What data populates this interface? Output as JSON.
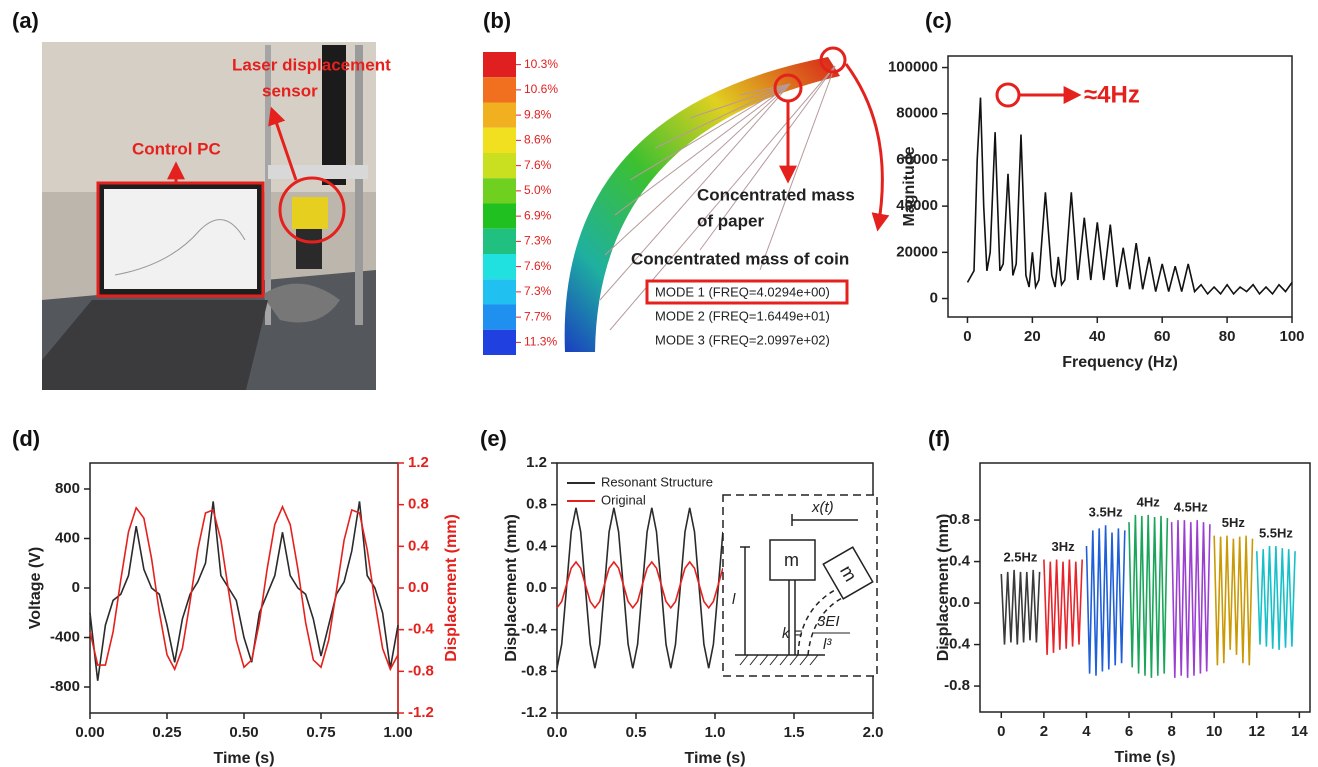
{
  "photo": {
    "label": "(a)",
    "annotations": [
      "Laser displacement",
      "sensor",
      "Control PC"
    ]
  },
  "simulation": {
    "label": "(b)",
    "colorbar": [
      "10.3%",
      "10.6%",
      "9.8%",
      "8.6%",
      "7.6%",
      "5.0%",
      "6.9%",
      "7.3%",
      "7.6%",
      "7.3%",
      "7.7%",
      "11.3%"
    ],
    "annotations": [
      "Concentrated mass",
      "of paper",
      "Concentrated mass of coin"
    ],
    "modes": [
      "MODE 1 (FREQ=4.0294e+00)",
      "MODE 2 (FREQ=1.6449e+01)",
      "MODE 3 (FREQ=2.0997e+02)"
    ]
  },
  "chart_data": [
    {
      "type": "line",
      "panel": "(c)",
      "xlabel": "Frequency (Hz)",
      "ylabel": "Magnitude",
      "annotation": "≈4Hz",
      "xlim": [
        -6,
        100
      ],
      "xticks": [
        0,
        20,
        40,
        60,
        80,
        100
      ],
      "ylim": [
        -8000,
        105000
      ],
      "yticks": [
        0,
        20000,
        40000,
        60000,
        80000,
        100000
      ],
      "color": "#111111",
      "x": [
        0,
        2,
        3,
        4,
        5,
        6,
        7,
        8.5,
        10,
        11,
        12.5,
        14,
        15,
        16.5,
        18,
        19,
        20,
        21,
        22,
        24,
        26,
        27,
        28,
        29,
        30,
        32,
        34,
        36,
        38,
        40,
        42,
        44,
        46,
        48,
        50,
        52,
        54,
        56,
        58,
        60,
        62,
        64,
        66,
        68,
        70,
        72,
        74,
        76,
        78,
        80,
        82,
        84,
        86,
        88,
        90,
        92,
        94,
        96,
        98,
        100
      ],
      "values": [
        7000,
        12000,
        60000,
        87000,
        40000,
        12000,
        20000,
        72000,
        12000,
        15000,
        54000,
        10000,
        15000,
        71000,
        10000,
        5000,
        20000,
        5000,
        8000,
        46000,
        10000,
        5000,
        18000,
        6000,
        8000,
        46000,
        8000,
        35000,
        8000,
        33000,
        8000,
        32000,
        5000,
        22000,
        4000,
        24000,
        4000,
        18000,
        3000,
        15000,
        3000,
        14000,
        3000,
        15000,
        3000,
        6000,
        2000,
        5000,
        2000,
        6000,
        2000,
        5000,
        3000,
        6000,
        2000,
        5000,
        2000,
        6000,
        3000,
        7000
      ]
    },
    {
      "type": "line",
      "panel": "(d)",
      "xlabel": "Time (s)",
      "ylabel": "Voltage (V)",
      "y2label": "Displacement (mm)",
      "xlim": [
        0,
        1
      ],
      "xticks": [
        {
          "value": 0,
          "label": "0.00"
        },
        0.25,
        {
          "value": 0.5,
          "label": "0.50"
        },
        0.75,
        {
          "value": 1,
          "label": "1.00"
        }
      ],
      "ylim": [
        -1010,
        1010
      ],
      "yticks": [
        -800,
        -400,
        0,
        400,
        800
      ],
      "y2lim": [
        -1.2,
        1.2
      ],
      "y2ticks": [
        -1.2,
        -0.8,
        -0.4,
        {
          "value": 0,
          "label": "0.0"
        },
        0.4,
        0.8,
        1.2
      ],
      "x": [
        0,
        0.025,
        0.05,
        0.075,
        0.1,
        0.125,
        0.15,
        0.175,
        0.2,
        0.225,
        0.25,
        0.275,
        0.3,
        0.325,
        0.35,
        0.375,
        0.4,
        0.425,
        0.45,
        0.475,
        0.5,
        0.525,
        0.55,
        0.575,
        0.6,
        0.625,
        0.65,
        0.675,
        0.7,
        0.725,
        0.75,
        0.775,
        0.8,
        0.825,
        0.85,
        0.875,
        0.9,
        0.925,
        0.95,
        0.975,
        1
      ],
      "series": [
        {
          "color": "#2b2b2b",
          "values": [
            -200,
            -750,
            -300,
            -100,
            -50,
            100,
            500,
            150,
            0,
            -50,
            -300,
            -600,
            -250,
            -50,
            50,
            200,
            700,
            100,
            0,
            -100,
            -400,
            -600,
            -200,
            -50,
            100,
            450,
            100,
            0,
            -50,
            -250,
            -550,
            -300,
            -50,
            50,
            300,
            700,
            100,
            0,
            -200,
            -650,
            -300
          ]
        },
        {
          "color": "#e5211d",
          "axis": "y2",
          "values": [
            -0.42,
            -0.74,
            -0.74,
            -0.42,
            0.08,
            0.54,
            0.77,
            0.67,
            0.28,
            -0.23,
            -0.64,
            -0.78,
            -0.58,
            -0.13,
            0.37,
            0.72,
            0.75,
            0.46,
            -0.03,
            -0.5,
            -0.76,
            -0.69,
            -0.33,
            0.18,
            0.61,
            0.78,
            0.61,
            0.18,
            -0.33,
            -0.69,
            -0.76,
            -0.5,
            -0.03,
            0.46,
            0.75,
            0.72,
            0.37,
            -0.13,
            -0.58,
            -0.78,
            -0.64
          ]
        }
      ]
    },
    {
      "type": "line",
      "panel": "(e)",
      "xlabel": "Time (s)",
      "ylabel": "Displacement (mm)",
      "legend": "upper left",
      "xlim": [
        0,
        2
      ],
      "xticks": [
        {
          "value": 0,
          "label": "0.0"
        },
        0.5,
        {
          "value": 1,
          "label": "1.0"
        },
        1.5,
        {
          "value": 2,
          "label": "2.0"
        }
      ],
      "ylim": [
        -1.2,
        1.2
      ],
      "yticks": [
        -1.2,
        -0.8,
        -0.4,
        {
          "value": 0,
          "label": "0.0"
        },
        0.4,
        0.8,
        1.2
      ],
      "inset": {
        "mass": "m",
        "displacement": "x(t)",
        "length": "l",
        "stiffness": "k =",
        "numerator": "3EI",
        "denominator": "l³"
      },
      "x": [
        0,
        0.03,
        0.06,
        0.09,
        0.12,
        0.15,
        0.18,
        0.21,
        0.24,
        0.27,
        0.3,
        0.33,
        0.36,
        0.39,
        0.42,
        0.45,
        0.48,
        0.51,
        0.54,
        0.57,
        0.6,
        0.63,
        0.66,
        0.69,
        0.72,
        0.75,
        0.78,
        0.81,
        0.84,
        0.87,
        0.9,
        0.93,
        0.96,
        0.99,
        1.02,
        1.05
      ],
      "series": [
        {
          "name": "Resonant Structure",
          "color": "#2b2b2b",
          "values": [
            -0.77,
            -0.54,
            0,
            0.54,
            0.77,
            0.54,
            0,
            -0.54,
            -0.77,
            -0.54,
            0,
            0.54,
            0.77,
            0.54,
            0,
            -0.54,
            -0.77,
            -0.54,
            0,
            0.54,
            0.77,
            0.54,
            0,
            -0.54,
            -0.77,
            -0.54,
            0,
            0.54,
            0.77,
            0.54,
            0,
            -0.54,
            -0.77,
            -0.54,
            0,
            0.54
          ]
        },
        {
          "name": "Original",
          "color": "#e5211d",
          "values": [
            -0.19,
            -0.13,
            0.03,
            0.19,
            0.25,
            0.19,
            0.03,
            -0.13,
            -0.19,
            -0.13,
            0.03,
            0.19,
            0.25,
            0.19,
            0.03,
            -0.13,
            -0.19,
            -0.13,
            0.03,
            0.19,
            0.25,
            0.19,
            0.03,
            -0.13,
            -0.19,
            -0.13,
            0.03,
            0.19,
            0.25,
            0.19,
            0.03,
            -0.13,
            -0.19,
            -0.13,
            0.03,
            0.19
          ]
        }
      ]
    },
    {
      "type": "line",
      "panel": "(f)",
      "xlabel": "Time (s)",
      "ylabel": "Displacement (mm)",
      "xlim": [
        -1,
        14.5
      ],
      "xticks": [
        0,
        2,
        4,
        6,
        8,
        10,
        12,
        14
      ],
      "ylim": [
        -1.05,
        1.35
      ],
      "yticks": [
        -0.8,
        -0.4,
        {
          "value": 0,
          "label": "0.0"
        },
        0.4,
        0.8
      ],
      "series": [
        {
          "name": "2.5Hz",
          "color": "#3a3a3a",
          "x": [
            0,
            0.15,
            0.3,
            0.45,
            0.6,
            0.75,
            0.9,
            1.05,
            1.2,
            1.35,
            1.5,
            1.65,
            1.8
          ],
          "values": [
            0.28,
            -0.4,
            0.3,
            -0.38,
            0.32,
            -0.4,
            0.3,
            -0.38,
            0.3,
            -0.36,
            0.32,
            -0.38,
            0.3
          ]
        },
        {
          "name": "3Hz",
          "color": "#e8242a",
          "x": [
            2,
            2.15,
            2.3,
            2.45,
            2.6,
            2.75,
            2.9,
            3.05,
            3.2,
            3.35,
            3.5,
            3.65,
            3.8
          ],
          "values": [
            0.42,
            -0.5,
            0.4,
            -0.48,
            0.42,
            -0.45,
            0.4,
            -0.44,
            0.42,
            -0.42,
            0.4,
            -0.4,
            0.42
          ]
        },
        {
          "name": "3.5Hz",
          "color": "#1f5fd8",
          "x": [
            4,
            4.15,
            4.3,
            4.45,
            4.6,
            4.75,
            4.9,
            5.05,
            5.2,
            5.35,
            5.5,
            5.65,
            5.8
          ],
          "values": [
            0.55,
            -0.68,
            0.7,
            -0.7,
            0.72,
            -0.66,
            0.75,
            -0.64,
            0.68,
            -0.6,
            0.72,
            -0.58,
            0.7
          ]
        },
        {
          "name": "4Hz",
          "color": "#1aa55a",
          "x": [
            6,
            6.15,
            6.3,
            6.45,
            6.6,
            6.75,
            6.9,
            7.05,
            7.2,
            7.35,
            7.5,
            7.65,
            7.8
          ],
          "values": [
            0.78,
            -0.62,
            0.85,
            -0.68,
            0.84,
            -0.7,
            0.85,
            -0.72,
            0.83,
            -0.7,
            0.84,
            -0.68,
            0.82
          ]
        },
        {
          "name": "4.5Hz",
          "color": "#9b3fd1",
          "x": [
            8,
            8.15,
            8.3,
            8.45,
            8.6,
            8.75,
            8.9,
            9.05,
            9.2,
            9.35,
            9.5,
            9.65,
            9.8
          ],
          "values": [
            0.78,
            -0.72,
            0.8,
            -0.7,
            0.8,
            -0.72,
            0.78,
            -0.7,
            0.8,
            -0.68,
            0.78,
            -0.66,
            0.76
          ]
        },
        {
          "name": "5Hz",
          "color": "#c99a06",
          "x": [
            10,
            10.15,
            10.3,
            10.45,
            10.6,
            10.75,
            10.9,
            11.05,
            11.2,
            11.35,
            11.5,
            11.65,
            11.8
          ],
          "values": [
            0.65,
            -0.6,
            0.64,
            -0.58,
            0.65,
            -0.45,
            0.62,
            -0.5,
            0.64,
            -0.58,
            0.65,
            -0.6,
            0.62
          ]
        },
        {
          "name": "5.5Hz",
          "color": "#17c0c8",
          "x": [
            12,
            12.15,
            12.3,
            12.45,
            12.6,
            12.75,
            12.9,
            13.05,
            13.2,
            13.35,
            13.5,
            13.65,
            13.8
          ],
          "values": [
            0.5,
            -0.4,
            0.52,
            -0.42,
            0.55,
            -0.44,
            0.55,
            -0.45,
            0.53,
            -0.43,
            0.52,
            -0.42,
            0.5
          ]
        }
      ]
    }
  ]
}
